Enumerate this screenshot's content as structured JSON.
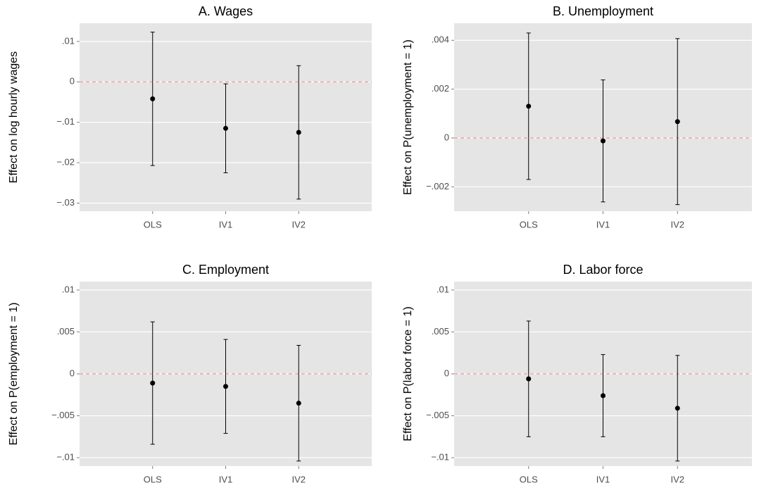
{
  "chart_data": [
    {
      "type": "errorbar",
      "title": "A. Wages",
      "ylabel": "Effect on log hourly wages",
      "categories": [
        "OLS",
        "IV1",
        "IV2"
      ],
      "values": [
        -0.0042,
        -0.0115,
        -0.0125
      ],
      "errors": [
        0.0165,
        0.011,
        0.0165
      ],
      "ylim": [
        -0.032,
        0.0145
      ],
      "yticks": [
        {
          "value": -0.03,
          "label": "−.03"
        },
        {
          "value": -0.02,
          "label": "−.02"
        },
        {
          "value": -0.01,
          "label": "−.01"
        },
        0,
        {
          "value": 0.01,
          "label": ".01"
        }
      ],
      "reference_line": 0,
      "reference_color": "#f08080",
      "color": "#000000",
      "grid": true
    },
    {
      "type": "errorbar",
      "title": "B. Unemployment",
      "ylabel": "Effect on P(unemployment = 1)",
      "categories": [
        "OLS",
        "IV1",
        "IV2"
      ],
      "values": [
        0.0013,
        -0.00012,
        0.00067
      ],
      "errors": [
        0.003,
        0.0025,
        0.0034
      ],
      "ylim": [
        -0.003,
        0.0047
      ],
      "yticks": [
        {
          "value": -0.002,
          "label": "−.002"
        },
        0,
        {
          "value": 0.002,
          "label": ".002"
        },
        {
          "value": 0.004,
          "label": ".004"
        }
      ],
      "reference_line": 0,
      "reference_color": "#f08080",
      "color": "#000000",
      "grid": true
    },
    {
      "type": "errorbar",
      "title": "C. Employment",
      "ylabel": "Effect on P(employment = 1)",
      "categories": [
        "OLS",
        "IV1",
        "IV2"
      ],
      "values": [
        -0.0011,
        -0.0015,
        -0.0035
      ],
      "errors": [
        0.0073,
        0.0056,
        0.0069
      ],
      "ylim": [
        -0.011,
        0.011
      ],
      "yticks": [
        {
          "value": -0.01,
          "label": "−.01"
        },
        {
          "value": -0.005,
          "label": "−.005"
        },
        0,
        {
          "value": 0.005,
          "label": ".005"
        },
        {
          "value": 0.01,
          "label": ".01"
        }
      ],
      "reference_line": 0,
      "reference_color": "#f08080",
      "color": "#000000",
      "grid": true
    },
    {
      "type": "errorbar",
      "title": "D. Labor force",
      "ylabel": "Effect on P(labor force = 1)",
      "categories": [
        "OLS",
        "IV1",
        "IV2"
      ],
      "values": [
        -0.0006,
        -0.0026,
        -0.0041
      ],
      "errors": [
        0.0069,
        0.0049,
        0.0063
      ],
      "ylim": [
        -0.011,
        0.011
      ],
      "yticks": [
        {
          "value": -0.01,
          "label": "−.01"
        },
        {
          "value": -0.005,
          "label": "−.005"
        },
        0,
        {
          "value": 0.005,
          "label": ".005"
        },
        {
          "value": 0.01,
          "label": ".01"
        }
      ],
      "reference_line": 0,
      "reference_color": "#f08080",
      "color": "#000000",
      "grid": true
    }
  ]
}
